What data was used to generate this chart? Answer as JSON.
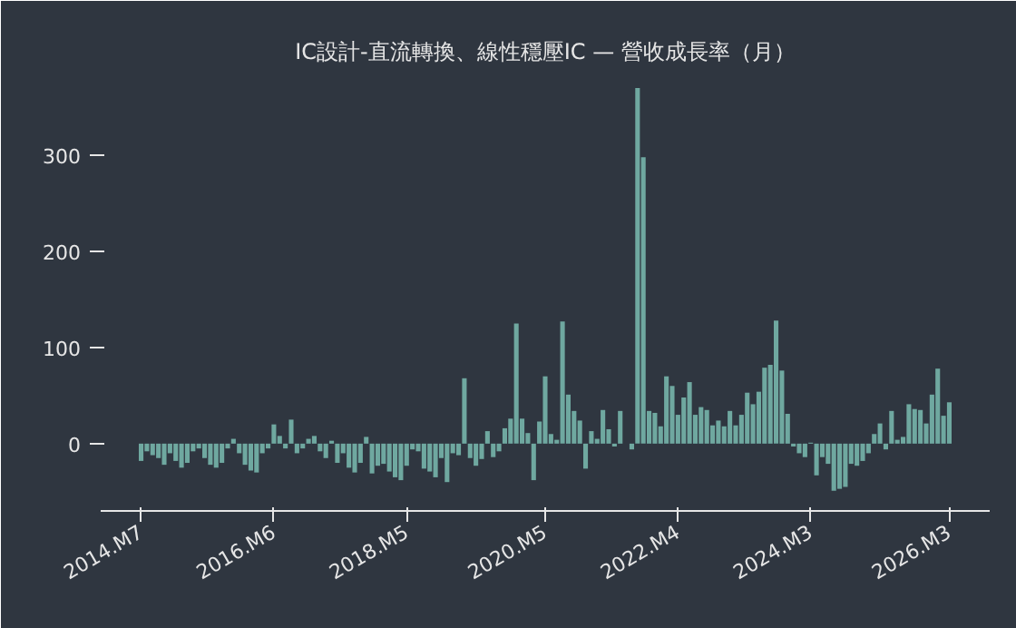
{
  "chart_data": {
    "type": "bar",
    "title": "IC設計-直流轉換、線性穩壓IC — 營收成長率（月）",
    "x": [
      "2014-07",
      "2014-08",
      "2014-09",
      "2014-10",
      "2014-11",
      "2014-12",
      "2015-01",
      "2015-02",
      "2015-03",
      "2015-04",
      "2015-05",
      "2015-06",
      "2015-07",
      "2015-08",
      "2015-09",
      "2015-10",
      "2015-11",
      "2015-12",
      "2016-01",
      "2016-02",
      "2016-03",
      "2016-04",
      "2016-05",
      "2016-06",
      "2016-07",
      "2016-08",
      "2016-09",
      "2016-10",
      "2016-11",
      "2016-12",
      "2017-01",
      "2017-02",
      "2017-03",
      "2017-04",
      "2017-05",
      "2017-06",
      "2017-07",
      "2017-08",
      "2017-09",
      "2017-10",
      "2017-11",
      "2017-12",
      "2018-01",
      "2018-02",
      "2018-03",
      "2018-04",
      "2018-05",
      "2018-06",
      "2018-07",
      "2018-08",
      "2018-09",
      "2018-10",
      "2018-11",
      "2018-12",
      "2019-01",
      "2019-02",
      "2019-03",
      "2019-04",
      "2019-05",
      "2019-06",
      "2019-07",
      "2019-08",
      "2019-09",
      "2019-10",
      "2019-11",
      "2019-12",
      "2020-01",
      "2020-02",
      "2020-03",
      "2020-04",
      "2020-05",
      "2020-06",
      "2020-07",
      "2020-08",
      "2020-09",
      "2020-10",
      "2020-11",
      "2020-12",
      "2021-01",
      "2021-02",
      "2021-03",
      "2021-04",
      "2021-05",
      "2021-06",
      "2021-07",
      "2021-08",
      "2021-09",
      "2021-10",
      "2021-11",
      "2021-12",
      "2022-01",
      "2022-02",
      "2022-03",
      "2022-04",
      "2022-05",
      "2022-06",
      "2022-07",
      "2022-08",
      "2022-09",
      "2022-10",
      "2022-11",
      "2022-12",
      "2023-01",
      "2023-02",
      "2023-03",
      "2023-04",
      "2023-05",
      "2023-06",
      "2023-07",
      "2023-08",
      "2023-09",
      "2023-10",
      "2023-11",
      "2023-12",
      "2024-01",
      "2024-02",
      "2024-03",
      "2024-04",
      "2024-05",
      "2024-06",
      "2024-07",
      "2024-08",
      "2024-09",
      "2024-10",
      "2024-11",
      "2024-12",
      "2025-01",
      "2025-02",
      "2025-03",
      "2025-04",
      "2025-05",
      "2025-06",
      "2025-07",
      "2025-08",
      "2025-09",
      "2025-10",
      "2025-11",
      "2025-12",
      "2026-01",
      "2026-02",
      "2026-03"
    ],
    "values": [
      -18,
      -8,
      -12,
      -15,
      -22,
      -10,
      -18,
      -25,
      -20,
      -8,
      -5,
      -15,
      -22,
      -25,
      -20,
      -5,
      5,
      -10,
      -22,
      -28,
      -30,
      -10,
      -5,
      20,
      8,
      -5,
      25,
      -10,
      -5,
      5,
      8,
      -8,
      -15,
      3,
      -20,
      -10,
      -25,
      -30,
      -20,
      7,
      -31,
      -23,
      -21,
      -29,
      -35,
      -38,
      -23,
      -6,
      -8,
      -26,
      -29,
      -35,
      -15,
      -40,
      -10,
      -12,
      68,
      -15,
      -23,
      -16,
      13,
      -14,
      -8,
      16,
      26,
      125,
      26,
      11,
      -38,
      23,
      70,
      10,
      4,
      127,
      51,
      34,
      24,
      -26,
      13,
      5,
      35,
      15,
      -3,
      34,
      0,
      -6,
      370,
      298,
      34,
      32,
      18,
      70,
      60,
      30,
      48,
      64,
      30,
      38,
      35,
      19,
      24,
      18,
      34,
      19,
      30,
      53,
      41,
      54,
      79,
      82,
      128,
      76,
      31,
      -3,
      -10,
      -14,
      1,
      -33,
      -14,
      -21,
      -49,
      -47,
      -45,
      -21,
      -23,
      -18,
      -10,
      10,
      21,
      -6,
      34,
      4,
      7,
      41,
      36,
      35,
      21,
      51,
      78,
      29,
      43
    ],
    "color": "#6fa8a0",
    "xlim": [
      "2013-12",
      "2026-10"
    ],
    "xticks": [
      {
        "value": "2014-07",
        "label": "2014.M7"
      },
      {
        "value": "2016-06",
        "label": "2016.M6"
      },
      {
        "value": "2018-05",
        "label": "2018.M5"
      },
      {
        "value": "2020-05",
        "label": "2020.M5"
      },
      {
        "value": "2022-04",
        "label": "2022.M4"
      },
      {
        "value": "2024-03",
        "label": "2024.M3"
      },
      {
        "value": "2026-03",
        "label": "2026.M3"
      }
    ],
    "ylim": [
      -70,
      385
    ],
    "yticks": [
      0,
      100,
      200,
      300
    ],
    "grid": false
  }
}
